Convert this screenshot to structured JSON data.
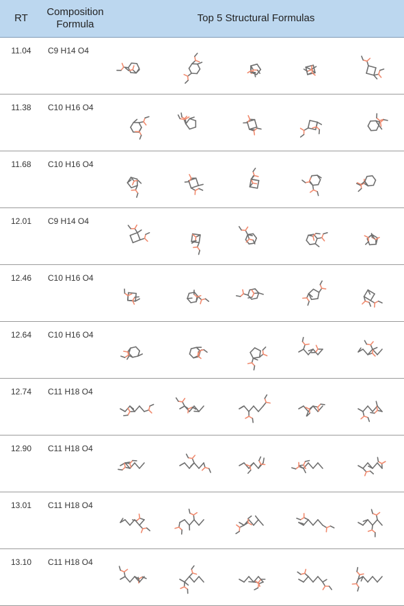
{
  "header": {
    "rt": "RT",
    "composition_line1": "Composition",
    "composition_line2": "Formula",
    "structures": "Top 5 Structural Formulas"
  },
  "rows": [
    {
      "rt": "11.04",
      "formula": "C9 H14 O4"
    },
    {
      "rt": "11.38",
      "formula": "C10 H16 O4"
    },
    {
      "rt": "11.68",
      "formula": "C10 H16 O4"
    },
    {
      "rt": "12.01",
      "formula": "C9 H14 O4"
    },
    {
      "rt": "12.46",
      "formula": "C10 H16 O4"
    },
    {
      "rt": "12.64",
      "formula": "C10 H16 O4"
    },
    {
      "rt": "12.74",
      "formula": "C11 H18 O4"
    },
    {
      "rt": "12.90",
      "formula": "C11 H18 O4"
    },
    {
      "rt": "13.01",
      "formula": "C11 H18 O4"
    },
    {
      "rt": "13.10",
      "formula": "C11 H18 O4"
    }
  ],
  "colors": {
    "header_bg": "#bcd7ef",
    "bond": "#6f6f6f",
    "oxygen": "#f08a6e"
  },
  "structures_per_row": 5
}
